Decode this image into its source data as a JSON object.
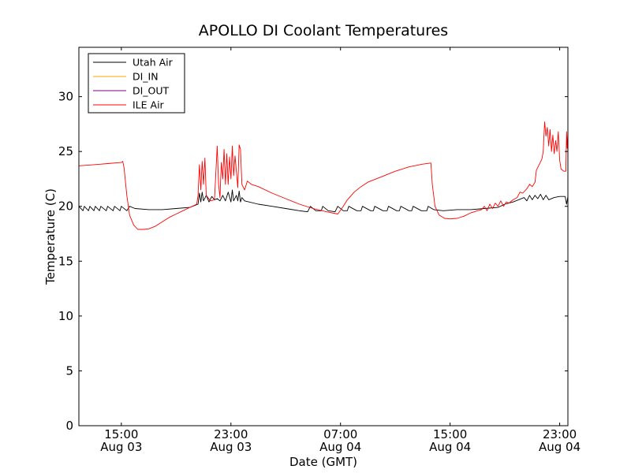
{
  "chart_data": {
    "type": "line",
    "title": "APOLLO DI Coolant Temperatures",
    "xlabel": "Date (GMT)",
    "ylabel": "Temperature (C)",
    "ylim": [
      0,
      34.5
    ],
    "xlim_hours": [
      11.9,
      47.6
    ],
    "x_unit": "hours since 00:00 Aug 03 GMT",
    "y_ticks": [
      0,
      5,
      10,
      15,
      20,
      25,
      30
    ],
    "y_tick_labels": [
      "0",
      "5",
      "10",
      "15",
      "20",
      "25",
      "30"
    ],
    "x_ticks": [
      {
        "hour": 15,
        "time": "15:00",
        "date": "Aug 03"
      },
      {
        "hour": 23,
        "time": "23:00",
        "date": "Aug 03"
      },
      {
        "hour": 31,
        "time": "07:00",
        "date": "Aug 04"
      },
      {
        "hour": 39,
        "time": "15:00",
        "date": "Aug 04"
      },
      {
        "hour": 47,
        "time": "23:00",
        "date": "Aug 04"
      }
    ],
    "legend_position": "top-left",
    "series": [
      {
        "name": "Utah Air",
        "color": "#000000",
        "points": [
          [
            11.9,
            20.0
          ],
          [
            12.2,
            19.6
          ],
          [
            12.3,
            20.0
          ],
          [
            12.6,
            19.6
          ],
          [
            12.7,
            20.0
          ],
          [
            13.0,
            19.6
          ],
          [
            13.1,
            20.0
          ],
          [
            13.4,
            19.6
          ],
          [
            13.5,
            20.0
          ],
          [
            13.9,
            19.6
          ],
          [
            14.0,
            20.0
          ],
          [
            14.4,
            19.6
          ],
          [
            14.5,
            20.0
          ],
          [
            14.9,
            19.6
          ],
          [
            15.0,
            20.0
          ],
          [
            15.4,
            19.6
          ],
          [
            15.6,
            20.0
          ],
          [
            16.0,
            19.8
          ],
          [
            17.0,
            19.7
          ],
          [
            18.0,
            19.7
          ],
          [
            19.0,
            19.8
          ],
          [
            20.0,
            19.9
          ],
          [
            20.6,
            20.2
          ],
          [
            20.7,
            21.2
          ],
          [
            20.8,
            20.4
          ],
          [
            20.9,
            21.3
          ],
          [
            21.0,
            20.5
          ],
          [
            21.2,
            21.0
          ],
          [
            21.4,
            20.4
          ],
          [
            21.6,
            20.9
          ],
          [
            21.8,
            20.6
          ],
          [
            22.0,
            20.7
          ],
          [
            22.2,
            20.5
          ],
          [
            22.4,
            21.0
          ],
          [
            22.6,
            20.5
          ],
          [
            22.8,
            21.3
          ],
          [
            23.0,
            20.4
          ],
          [
            23.1,
            21.5
          ],
          [
            23.2,
            20.5
          ],
          [
            23.4,
            21.0
          ],
          [
            23.5,
            20.5
          ],
          [
            23.6,
            21.4
          ],
          [
            23.7,
            20.4
          ],
          [
            23.8,
            20.8
          ],
          [
            24.0,
            20.5
          ],
          [
            25.0,
            20.2
          ],
          [
            26.0,
            20.0
          ],
          [
            27.0,
            19.8
          ],
          [
            28.0,
            19.6
          ],
          [
            28.6,
            19.5
          ],
          [
            28.8,
            20.0
          ],
          [
            29.2,
            19.6
          ],
          [
            29.6,
            19.6
          ],
          [
            29.7,
            20.0
          ],
          [
            30.1,
            19.6
          ],
          [
            30.6,
            19.5
          ],
          [
            30.8,
            20.0
          ],
          [
            31.2,
            19.6
          ],
          [
            31.5,
            19.6
          ],
          [
            31.6,
            20.0
          ],
          [
            32.2,
            19.6
          ],
          [
            32.5,
            19.6
          ],
          [
            32.6,
            20.0
          ],
          [
            33.2,
            19.6
          ],
          [
            33.4,
            19.6
          ],
          [
            33.5,
            20.0
          ],
          [
            34.1,
            19.6
          ],
          [
            34.4,
            19.6
          ],
          [
            34.5,
            20.0
          ],
          [
            35.1,
            19.6
          ],
          [
            35.3,
            19.6
          ],
          [
            35.4,
            20.0
          ],
          [
            36.0,
            19.6
          ],
          [
            36.2,
            19.6
          ],
          [
            36.3,
            20.0
          ],
          [
            36.9,
            19.6
          ],
          [
            37.3,
            19.6
          ],
          [
            37.4,
            20.0
          ],
          [
            37.8,
            19.7
          ],
          [
            38.5,
            19.6
          ],
          [
            39.5,
            19.7
          ],
          [
            40.5,
            19.7
          ],
          [
            41.5,
            19.8
          ],
          [
            42.5,
            19.9
          ],
          [
            43.0,
            20.2
          ],
          [
            43.6,
            20.4
          ],
          [
            44.0,
            20.6
          ],
          [
            44.4,
            20.8
          ],
          [
            44.6,
            20.5
          ],
          [
            44.8,
            21.0
          ],
          [
            45.0,
            20.6
          ],
          [
            45.2,
            21.0
          ],
          [
            45.4,
            20.7
          ],
          [
            45.6,
            21.1
          ],
          [
            45.8,
            20.6
          ],
          [
            46.0,
            21.0
          ],
          [
            46.2,
            20.6
          ],
          [
            46.6,
            20.8
          ],
          [
            47.0,
            20.9
          ],
          [
            47.4,
            20.9
          ],
          [
            47.5,
            20.2
          ],
          [
            47.6,
            20.9
          ]
        ]
      },
      {
        "name": "DI_IN",
        "color": "#ffa500",
        "points": []
      },
      {
        "name": "DI_OUT",
        "color": "#800080",
        "points": []
      },
      {
        "name": "ILE Air",
        "color": "#ff0000",
        "points": [
          [
            11.9,
            23.7
          ],
          [
            13.0,
            23.8
          ],
          [
            14.0,
            23.9
          ],
          [
            15.0,
            24.0
          ],
          [
            15.1,
            24.1
          ],
          [
            15.2,
            23.5
          ],
          [
            15.4,
            21.0
          ],
          [
            15.6,
            19.2
          ],
          [
            15.9,
            18.3
          ],
          [
            16.2,
            17.9
          ],
          [
            16.6,
            17.9
          ],
          [
            17.0,
            17.95
          ],
          [
            17.5,
            18.2
          ],
          [
            18.0,
            18.6
          ],
          [
            18.5,
            19.0
          ],
          [
            19.0,
            19.3
          ],
          [
            19.5,
            19.6
          ],
          [
            20.0,
            19.9
          ],
          [
            20.5,
            20.2
          ],
          [
            20.6,
            21.0
          ],
          [
            20.7,
            23.8
          ],
          [
            20.8,
            21.5
          ],
          [
            20.9,
            24.1
          ],
          [
            21.0,
            22.0
          ],
          [
            21.1,
            24.4
          ],
          [
            21.2,
            21.0
          ],
          [
            21.5,
            20.5
          ],
          [
            21.8,
            20.6
          ],
          [
            22.0,
            25.5
          ],
          [
            22.1,
            22.0
          ],
          [
            22.2,
            20.8
          ],
          [
            22.3,
            24.0
          ],
          [
            22.4,
            22.5
          ],
          [
            22.5,
            25.2
          ],
          [
            22.6,
            22.0
          ],
          [
            22.7,
            24.8
          ],
          [
            22.8,
            22.0
          ],
          [
            22.9,
            24.5
          ],
          [
            23.0,
            22.5
          ],
          [
            23.1,
            25.5
          ],
          [
            23.2,
            22.8
          ],
          [
            23.3,
            24.6
          ],
          [
            23.5,
            21.7
          ],
          [
            23.6,
            25.6
          ],
          [
            23.7,
            25.2
          ],
          [
            23.8,
            22.0
          ],
          [
            24.0,
            21.5
          ],
          [
            24.2,
            22.3
          ],
          [
            24.5,
            22.0
          ],
          [
            25.0,
            21.8
          ],
          [
            26.0,
            21.2
          ],
          [
            27.0,
            20.7
          ],
          [
            28.0,
            20.2
          ],
          [
            29.0,
            19.8
          ],
          [
            30.0,
            19.5
          ],
          [
            30.8,
            19.3
          ],
          [
            31.2,
            20.0
          ],
          [
            31.5,
            20.6
          ],
          [
            32.0,
            21.3
          ],
          [
            32.5,
            21.8
          ],
          [
            33.0,
            22.2
          ],
          [
            34.0,
            22.7
          ],
          [
            35.0,
            23.2
          ],
          [
            36.0,
            23.6
          ],
          [
            37.0,
            23.85
          ],
          [
            37.6,
            23.95
          ],
          [
            37.7,
            22.0
          ],
          [
            37.9,
            20.0
          ],
          [
            38.2,
            19.2
          ],
          [
            38.6,
            18.9
          ],
          [
            39.0,
            18.85
          ],
          [
            39.5,
            18.9
          ],
          [
            40.0,
            19.1
          ],
          [
            40.5,
            19.4
          ],
          [
            41.0,
            19.6
          ],
          [
            41.3,
            19.7
          ],
          [
            41.5,
            20.0
          ],
          [
            41.7,
            19.6
          ],
          [
            41.9,
            20.2
          ],
          [
            42.1,
            19.8
          ],
          [
            42.3,
            20.3
          ],
          [
            42.5,
            20.0
          ],
          [
            42.7,
            20.5
          ],
          [
            42.9,
            20.0
          ],
          [
            43.1,
            20.4
          ],
          [
            43.3,
            20.3
          ],
          [
            43.6,
            20.6
          ],
          [
            43.9,
            20.8
          ],
          [
            44.1,
            21.3
          ],
          [
            44.3,
            21.2
          ],
          [
            44.6,
            21.6
          ],
          [
            44.8,
            22.0
          ],
          [
            45.0,
            21.8
          ],
          [
            45.2,
            22.2
          ],
          [
            45.3,
            23.3
          ],
          [
            45.5,
            23.8
          ],
          [
            45.7,
            24.3
          ],
          [
            45.8,
            25.0
          ],
          [
            45.9,
            27.7
          ],
          [
            46.0,
            26.4
          ],
          [
            46.1,
            27.2
          ],
          [
            46.2,
            25.5
          ],
          [
            46.3,
            27.0
          ],
          [
            46.4,
            25.0
          ],
          [
            46.5,
            26.5
          ],
          [
            46.6,
            24.8
          ],
          [
            46.7,
            26.0
          ],
          [
            46.8,
            25.0
          ],
          [
            46.9,
            26.8
          ],
          [
            47.0,
            24.2
          ],
          [
            47.1,
            23.4
          ],
          [
            47.3,
            23.2
          ],
          [
            47.45,
            23.2
          ],
          [
            47.5,
            26.8
          ],
          [
            47.55,
            25.3
          ],
          [
            47.6,
            26.7
          ]
        ]
      }
    ]
  }
}
